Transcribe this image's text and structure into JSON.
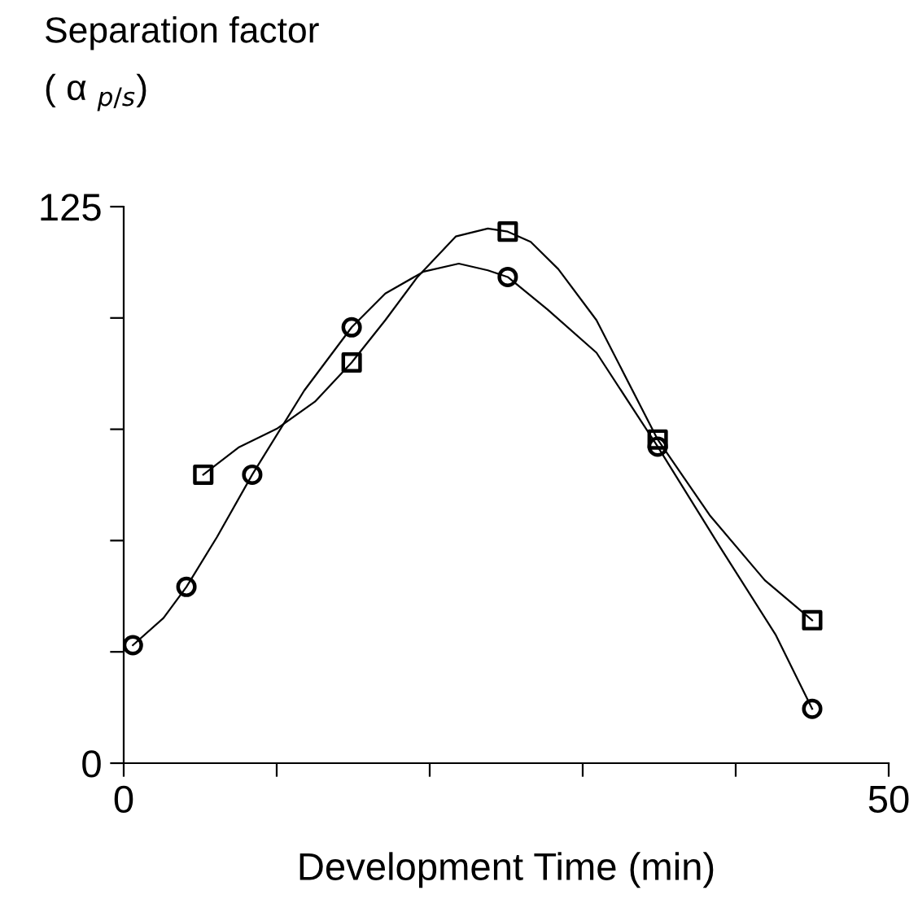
{
  "chart_data": {
    "type": "scatter",
    "ylabel": "Separation factor\n( α $_{p/s}$)",
    "xlabel": "Development Time (min)",
    "xlim": [
      0,
      50
    ],
    "ylim": [
      0,
      125
    ],
    "xticks": [
      0,
      {
        "value": 10,
        "label": null
      },
      {
        "value": 20,
        "label": null
      },
      {
        "value": 30,
        "label": null
      },
      {
        "value": 40,
        "label": null
      },
      50
    ],
    "yticks": [
      0,
      {
        "value": 25,
        "label": null
      },
      {
        "value": 50,
        "label": null
      },
      {
        "value": 75,
        "label": null
      },
      {
        "value": 100,
        "label": null
      },
      125
    ],
    "grid": false,
    "legend": false,
    "series": [
      {
        "marker": "circle",
        "color": "#000000",
        "x": [
          0.6,
          4.1,
          8.4,
          14.9,
          25.1,
          34.9,
          45.0
        ],
        "values": [
          26.5,
          39.6,
          64.8,
          97.9,
          109.2,
          71.1,
          12.2
        ]
      },
      {
        "marker": "square",
        "color": "#000000",
        "x": [
          5.2,
          14.9,
          25.1,
          34.9,
          45.0
        ],
        "values": [
          64.8,
          90.0,
          119.4,
          72.7,
          32.1
        ]
      },
      {
        "type": "line",
        "marker": "none",
        "line_style": "solid",
        "color": "#000000",
        "x": [
          0.6,
          2.6,
          4.1,
          6.1,
          8.4,
          11.8,
          14.9,
          17.1,
          19.6,
          21.9,
          23.8,
          25.1,
          27.7,
          30.9,
          34.9,
          39.0,
          42.6,
          45.0
        ],
        "values": [
          26.5,
          32.6,
          39.6,
          50.8,
          64.8,
          83.7,
          97.9,
          105.5,
          110.4,
          112.2,
          110.7,
          109.2,
          101.9,
          92.2,
          71.1,
          48.4,
          28.9,
          12.2
        ]
      },
      {
        "type": "line",
        "marker": "none",
        "line_style": "solid",
        "color": "#000000",
        "x": [
          5.2,
          7.5,
          10.0,
          12.5,
          14.9,
          17.1,
          19.2,
          21.7,
          23.8,
          25.1,
          26.6,
          28.4,
          30.9,
          34.9,
          38.3,
          41.9,
          45.0
        ],
        "values": [
          64.8,
          70.9,
          75.1,
          81.2,
          90.0,
          99.5,
          109.2,
          118.3,
          120.1,
          119.4,
          117.1,
          111.0,
          99.5,
          72.7,
          55.7,
          41.1,
          32.1
        ]
      }
    ]
  }
}
